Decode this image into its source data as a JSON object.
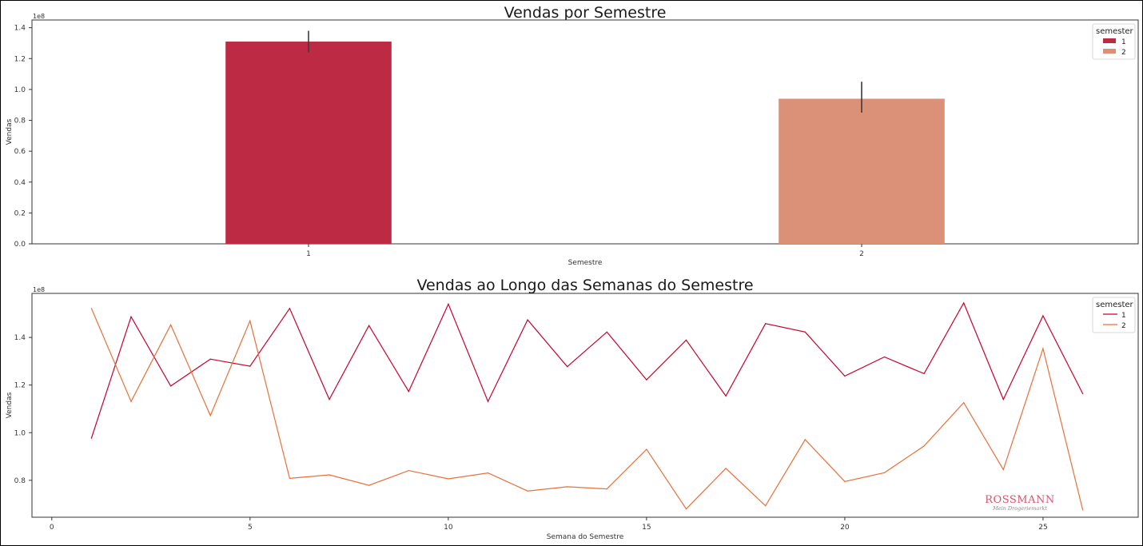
{
  "colors": {
    "s1": "#c5002b",
    "s2": "#e8703a",
    "bar1": "#bd2a43",
    "bar2": "#db9178"
  },
  "logo": {
    "brand": "ROSSMANN",
    "tagline": "Mein Drogeriemarkt"
  },
  "chart_data": [
    {
      "type": "bar",
      "title": "Vendas por Semestre",
      "xlabel": "Semestre",
      "ylabel": "Vendas",
      "offset_text": "1e8",
      "categories": [
        "1",
        "2"
      ],
      "values": [
        1.31,
        0.94
      ],
      "error_bars": [
        [
          1.24,
          1.38
        ],
        [
          0.85,
          1.05
        ]
      ],
      "ylim": [
        0,
        1.45
      ],
      "yticks": [
        "0.0",
        "0.2",
        "0.4",
        "0.6",
        "0.8",
        "1.0",
        "1.2",
        "1.4"
      ],
      "legend": {
        "title": "semester",
        "entries": [
          "1",
          "2"
        ],
        "position": "top-right"
      }
    },
    {
      "type": "line",
      "title": "Vendas ao Longo das Semanas do Semestre",
      "xlabel": "Semana do Semestre",
      "ylabel": "Vendas",
      "offset_text": "1e8",
      "xlim": [
        -0.5,
        27.4
      ],
      "ylim": [
        0.645,
        1.585
      ],
      "xticks": [
        "0",
        "5",
        "10",
        "15",
        "20",
        "25"
      ],
      "yticks": [
        "0.8",
        "1.0",
        "1.2",
        "1.4"
      ],
      "legend": {
        "title": "semester",
        "entries": [
          "1",
          "2"
        ],
        "position": "top-right"
      },
      "series": [
        {
          "name": "1",
          "x": [
            1,
            2,
            3,
            4,
            5,
            6,
            7,
            8,
            9,
            10,
            11,
            12,
            13,
            14,
            15,
            16,
            17,
            18,
            19,
            20,
            21,
            22,
            23,
            24,
            25,
            26
          ],
          "values": [
            0.977,
            1.487,
            1.196,
            1.309,
            1.279,
            1.522,
            1.14,
            1.45,
            1.173,
            1.54,
            1.131,
            1.474,
            1.277,
            1.423,
            1.222,
            1.389,
            1.154,
            1.458,
            1.423,
            1.238,
            1.318,
            1.248,
            1.545,
            1.14,
            1.491,
            1.164
          ]
        },
        {
          "name": "2",
          "x": [
            1,
            2,
            3,
            4,
            5,
            6,
            7,
            8,
            9,
            10,
            11,
            12,
            13,
            14,
            15,
            16,
            17,
            18,
            19,
            20,
            21,
            22,
            23,
            24,
            25,
            26
          ],
          "values": [
            1.522,
            1.131,
            1.453,
            1.072,
            1.47,
            0.808,
            0.823,
            0.779,
            0.841,
            0.806,
            0.831,
            0.755,
            0.773,
            0.764,
            0.93,
            0.68,
            0.85,
            0.693,
            0.971,
            0.795,
            0.832,
            0.944,
            1.126,
            0.845,
            1.353,
            0.676
          ]
        }
      ]
    }
  ]
}
